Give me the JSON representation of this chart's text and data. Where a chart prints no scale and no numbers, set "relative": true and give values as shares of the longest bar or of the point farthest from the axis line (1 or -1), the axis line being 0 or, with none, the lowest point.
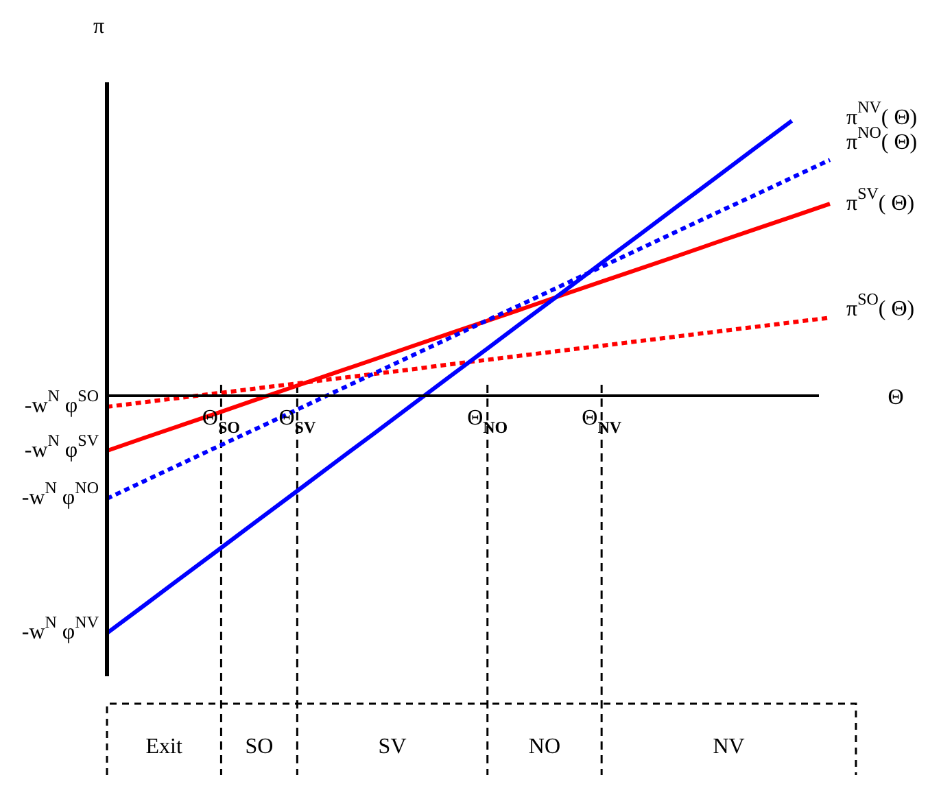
{
  "chart_data": {
    "type": "line",
    "relative": true,
    "ylabel": "π",
    "xlabel": "Θ",
    "tick_labels": "x",
    "legend": false,
    "grid": "x",
    "categories": [
      null,
      null,
      null,
      "Θ$_{SO}$",
      null,
      "Θ$_{SV}$",
      null,
      null,
      null,
      null,
      "Θ$_{NO}$",
      null,
      null,
      "Θ$_{NV}$",
      null,
      null,
      null,
      null,
      null,
      null
    ],
    "series": [
      {
        "name": "π$^{NV}$( Θ)",
        "color": "#0000ff",
        "line_style": "solid",
        "values": [
          -0.863,
          -0.76,
          -0.656,
          -0.553,
          -0.449,
          -0.346,
          -0.242,
          -0.139,
          -0.035,
          0.069,
          0.172,
          0.276,
          0.379,
          0.483,
          0.586,
          0.69,
          0.793,
          0.897,
          1,
          null
        ]
      },
      {
        "name": "π$^{NO}$( Θ)",
        "color": "#0000ff",
        "line_style": "dotted",
        "values": [
          -0.374,
          -0.309,
          -0.244,
          -0.179,
          -0.115,
          -0.05,
          0.015,
          0.08,
          0.145,
          0.21,
          0.275,
          0.339,
          0.404,
          0.469,
          0.534,
          0.599,
          0.664,
          0.728,
          0.793,
          0.858
        ]
      },
      {
        "name": "π$^{SV}$( Θ)",
        "color": "#ff0000",
        "line_style": "solid",
        "values": [
          -0.2,
          -0.152,
          -0.105,
          -0.058,
          -0.01,
          0.037,
          0.084,
          0.131,
          0.179,
          0.226,
          0.273,
          0.32,
          0.368,
          0.415,
          0.462,
          0.509,
          0.557,
          0.604,
          0.651,
          0.698
        ]
      },
      {
        "name": "π$^{SO}$( Θ)",
        "color": "#ff0000",
        "line_style": "dotted",
        "values": [
          -0.04,
          -0.023,
          -0.006,
          0.011,
          0.028,
          0.045,
          0.062,
          0.079,
          0.096,
          0.114,
          0.131,
          0.148,
          0.165,
          0.182,
          0.199,
          0.216,
          0.233,
          0.25,
          0.267,
          0.284
        ]
      }
    ],
    "annotations": [
      "-w$^{N}$ φ$^{NV}$",
      "-w$^{N}$ φ$^{NO}$",
      "-w$^{N}$ φ$^{SV}$",
      "-w$^{N}$ φ$^{SO}$",
      "Exit",
      "SO",
      "SV",
      "NO",
      "NV"
    ]
  }
}
